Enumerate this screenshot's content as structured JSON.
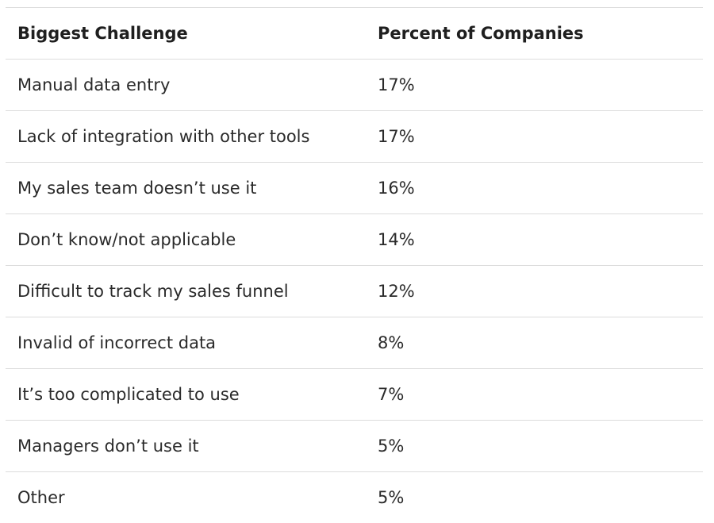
{
  "table": {
    "headers": [
      "Biggest Challenge",
      "Percent of Companies"
    ],
    "rows": [
      [
        "Manual data entry",
        "17%"
      ],
      [
        "Lack of integration with other tools",
        "17%"
      ],
      [
        "My sales team doesn’t use it",
        "16%"
      ],
      [
        "Don’t know/not applicable",
        "14%"
      ],
      [
        "Difficult to track my sales funnel",
        "12%"
      ],
      [
        "Invalid of incorrect data",
        "8%"
      ],
      [
        "It’s too complicated to use",
        "7%"
      ],
      [
        "Managers don’t use it",
        "5%"
      ],
      [
        "Other",
        "5%"
      ]
    ]
  }
}
